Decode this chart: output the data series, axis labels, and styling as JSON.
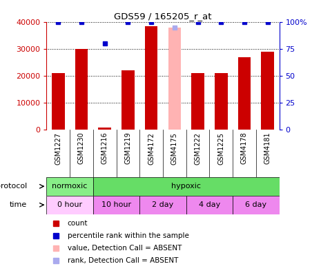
{
  "title": "GDS59 / 165205_r_at",
  "samples": [
    "GSM1227",
    "GSM1230",
    "GSM1216",
    "GSM1219",
    "GSM4172",
    "GSM4175",
    "GSM1222",
    "GSM1225",
    "GSM4178",
    "GSM4181"
  ],
  "bar_values": [
    21000,
    30000,
    900,
    22000,
    38500,
    0,
    21000,
    21000,
    27000,
    29000
  ],
  "absent_bar_value": 38000,
  "absent_bar_index": 5,
  "rank_values": [
    100,
    100,
    80,
    100,
    100,
    95,
    100,
    100,
    100,
    100
  ],
  "rank_absent_index": 5,
  "rank_low_index": 2,
  "ylim": [
    0,
    40000
  ],
  "ylim_right": [
    0,
    100
  ],
  "yticks_left": [
    0,
    10000,
    20000,
    30000,
    40000
  ],
  "yticks_right": [
    0,
    25,
    50,
    75,
    100
  ],
  "bar_color": "#cc0000",
  "absent_bar_color": "#ffb3b3",
  "rank_color": "#0000cc",
  "rank_absent_color": "#aaaaee",
  "bg_color": "#ffffff",
  "protocol_row": [
    {
      "label": "normoxic",
      "span": [
        0,
        2
      ],
      "color": "#88ee88"
    },
    {
      "label": "hypoxic",
      "span": [
        2,
        10
      ],
      "color": "#66dd66"
    }
  ],
  "time_row": [
    {
      "label": "0 hour",
      "span": [
        0,
        2
      ],
      "color": "#ffccff"
    },
    {
      "label": "10 hour",
      "span": [
        2,
        4
      ],
      "color": "#ee88ee"
    },
    {
      "label": "2 day",
      "span": [
        4,
        6
      ],
      "color": "#ee88ee"
    },
    {
      "label": "4 day",
      "span": [
        6,
        8
      ],
      "color": "#ee88ee"
    },
    {
      "label": "6 day",
      "span": [
        8,
        10
      ],
      "color": "#ee88ee"
    }
  ],
  "legend_items": [
    {
      "label": "count",
      "color": "#cc0000"
    },
    {
      "label": "percentile rank within the sample",
      "color": "#0000cc"
    },
    {
      "label": "value, Detection Call = ABSENT",
      "color": "#ffb3b3"
    },
    {
      "label": "rank, Detection Call = ABSENT",
      "color": "#aaaaee"
    }
  ],
  "left_tick_color": "#cc0000",
  "right_tick_color": "#0000cc",
  "sample_bg_color": "#cccccc"
}
